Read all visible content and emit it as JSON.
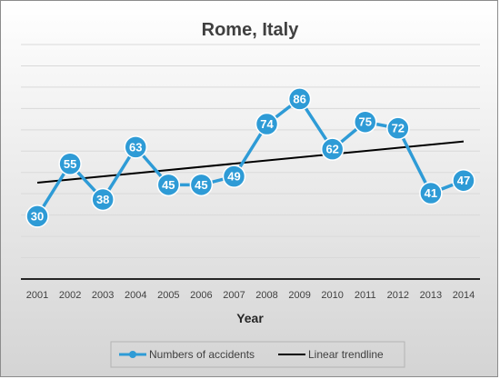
{
  "chart_data": {
    "type": "line",
    "title": "Rome, Italy",
    "xlabel": "Year",
    "ylabel": "",
    "x": [
      "2001",
      "2002",
      "2003",
      "2004",
      "2005",
      "2006",
      "2007",
      "2008",
      "2009",
      "2010",
      "2011",
      "2012",
      "2013",
      "2014"
    ],
    "series": [
      {
        "name": "Numbers of accidents",
        "values": [
          30,
          55,
          38,
          63,
          45,
          45,
          49,
          74,
          86,
          62,
          75,
          72,
          41,
          47
        ],
        "color": "#2e9bd6",
        "marker": "circle",
        "data_labels": true
      }
    ],
    "trendline": {
      "name": "Linear trendline",
      "type": "linear",
      "color": "#000000"
    },
    "ylim": [
      0,
      112
    ],
    "grid": true,
    "y_tick_labels_shown": false,
    "legend": "bottom"
  }
}
